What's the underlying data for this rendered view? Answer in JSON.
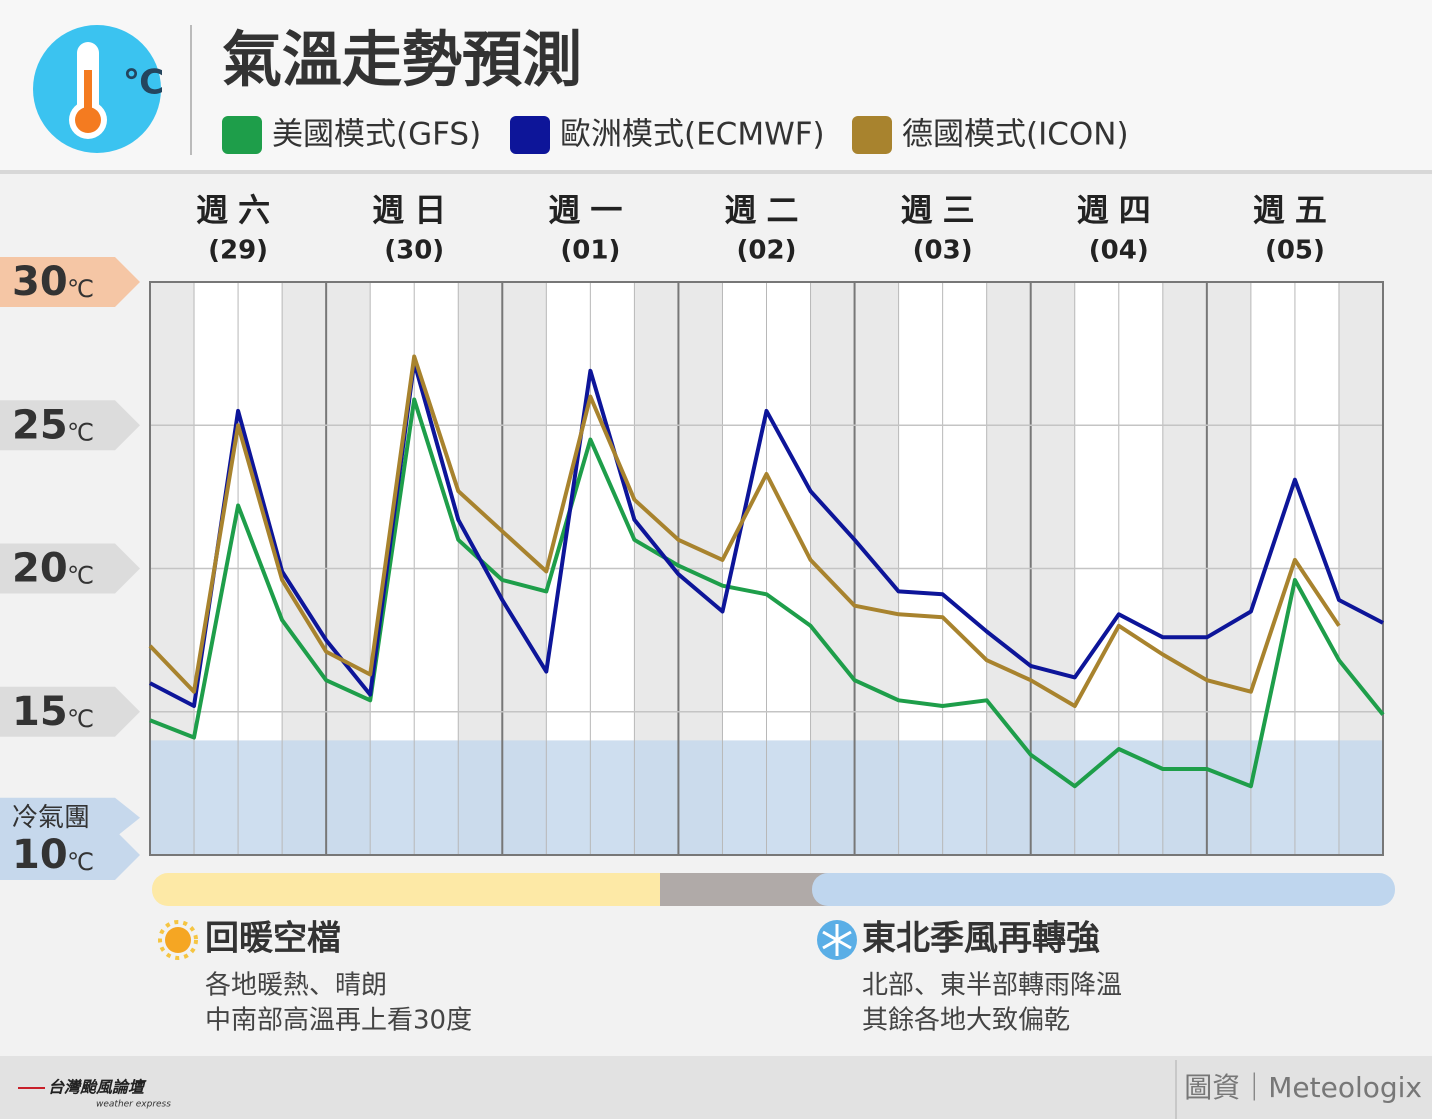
{
  "header": {
    "title": "氣溫走勢預測"
  },
  "chart_data": {
    "type": "line",
    "y_unit": "℃",
    "categories": [
      "週六",
      "週日",
      "週一",
      "週二",
      "週三",
      "週四",
      "週五"
    ],
    "dates": [
      "(29)",
      "(30)",
      "(01)",
      "(02)",
      "(03)",
      "(04)",
      "(05)"
    ],
    "x": [
      0,
      6,
      12,
      18,
      24,
      30,
      36,
      42,
      48,
      54,
      60,
      66,
      72,
      78,
      84,
      90,
      96,
      102,
      108,
      114,
      120,
      126,
      132,
      138,
      144,
      150,
      156,
      162,
      168
    ],
    "xlim": [
      0,
      168
    ],
    "ylim": [
      10,
      30
    ],
    "yticks": [
      10,
      15,
      20,
      25,
      30
    ],
    "grid": true,
    "cold_band": {
      "label": "冷氣團",
      "range": [
        10,
        14
      ],
      "color": "#c6d8ec"
    },
    "series": [
      {
        "name": "美國模式(GFS)",
        "color": "#1e9e4a",
        "values": [
          14.7,
          14.1,
          22.2,
          18.2,
          16.1,
          15.4,
          25.9,
          21.0,
          19.6,
          19.2,
          24.5,
          21.0,
          20.1,
          19.4,
          19.1,
          18.0,
          16.1,
          15.4,
          15.2,
          15.4,
          13.5,
          12.4,
          13.7,
          13.0,
          13.0,
          12.4,
          19.6,
          16.8,
          14.9
        ]
      },
      {
        "name": "歐洲模式(ECMWF)",
        "color": "#0d1599",
        "values": [
          16.0,
          15.2,
          25.5,
          19.9,
          17.5,
          15.6,
          27.2,
          21.7,
          18.9,
          16.4,
          26.9,
          21.7,
          19.8,
          18.5,
          25.5,
          22.7,
          21.0,
          19.2,
          19.1,
          17.8,
          16.6,
          16.2,
          18.4,
          17.6,
          17.6,
          18.5,
          23.1,
          18.9,
          18.1
        ]
      },
      {
        "name": "德國模式(ICON)",
        "color": "#a8832e",
        "values": [
          17.3,
          15.7,
          25.0,
          19.6,
          17.1,
          16.3,
          27.4,
          22.7,
          21.3,
          19.9,
          26.0,
          22.4,
          21.0,
          20.3,
          23.3,
          20.3,
          18.7,
          18.4,
          18.3,
          16.8,
          16.1,
          15.2,
          18.0,
          17.0,
          16.1,
          15.7,
          20.3,
          18.0,
          null
        ]
      }
    ]
  },
  "notes": [
    {
      "title": "回暖空檔",
      "lines": [
        "各地暖熱、晴朗",
        "中南部高溫再上看30度"
      ]
    },
    {
      "title": "東北季風再轉強",
      "lines": [
        "北部、東半部轉雨降溫",
        "其餘各地大致偏乾"
      ]
    }
  ],
  "footer": {
    "logo": "台灣颱風論壇",
    "logo_sub": "weather express",
    "source": "圖資｜Meteologix"
  }
}
